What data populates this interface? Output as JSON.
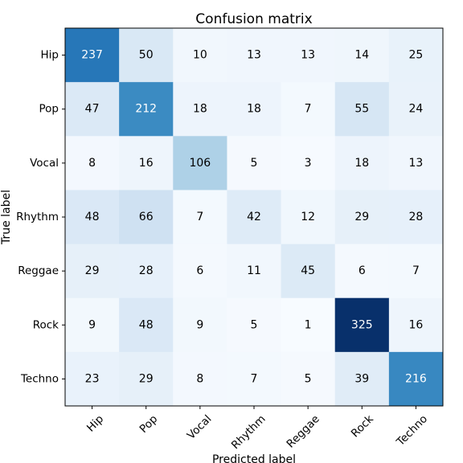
{
  "chart_data": {
    "type": "heatmap",
    "title": "Confusion matrix",
    "xlabel": "Predicted label",
    "ylabel": "True label",
    "x_categories": [
      "Hip",
      "Pop",
      "Vocal",
      "Rhythm",
      "Reggae",
      "Rock",
      "Techno"
    ],
    "y_categories": [
      "Hip",
      "Pop",
      "Vocal",
      "Rhythm",
      "Reggae",
      "Rock",
      "Techno"
    ],
    "values": [
      [
        237,
        50,
        10,
        13,
        13,
        14,
        25
      ],
      [
        47,
        212,
        18,
        18,
        7,
        55,
        24
      ],
      [
        8,
        16,
        106,
        5,
        3,
        18,
        13
      ],
      [
        48,
        66,
        7,
        42,
        12,
        29,
        28
      ],
      [
        29,
        28,
        6,
        11,
        45,
        6,
        7
      ],
      [
        9,
        48,
        9,
        5,
        1,
        325,
        16
      ],
      [
        23,
        29,
        8,
        7,
        5,
        39,
        216
      ]
    ],
    "colormap": "Blues",
    "vmin": 1,
    "vmax": 325,
    "x_tick_rotation": 45
  }
}
